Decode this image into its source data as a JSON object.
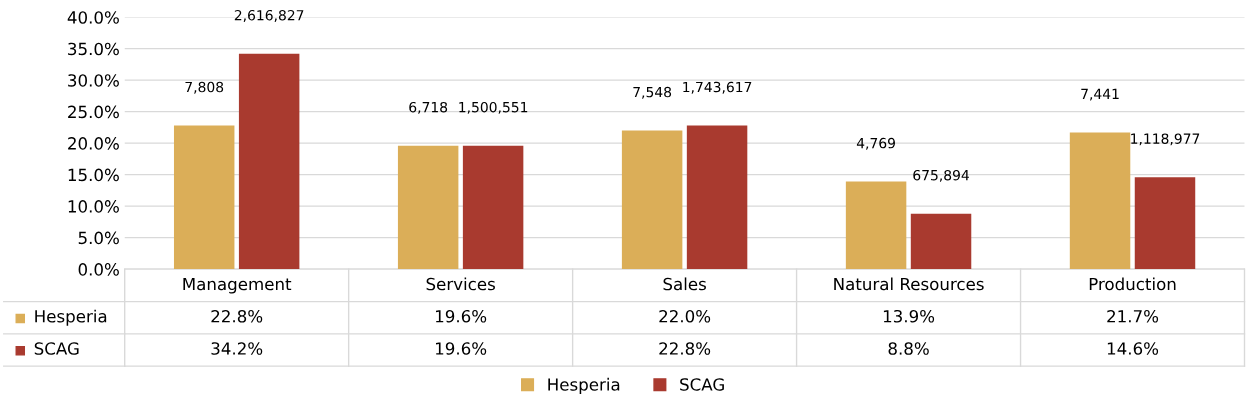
{
  "chart_data": {
    "type": "bar",
    "categories": [
      "Management",
      "Services",
      "Sales",
      "Natural Resources",
      "Production"
    ],
    "series": [
      {
        "name": "Hesperia",
        "color": "#dbae58",
        "values": [
          22.8,
          19.6,
          22.0,
          13.9,
          21.7
        ]
      },
      {
        "name": "SCAG",
        "color": "#a93a2f",
        "values": [
          34.2,
          19.6,
          22.8,
          8.8,
          14.6
        ]
      }
    ],
    "ylim": [
      0,
      40
    ],
    "yticks": [
      {
        "value": 0,
        "label": "0.0%"
      },
      {
        "value": 5,
        "label": "5.0%"
      },
      {
        "value": 10,
        "label": "10.0%"
      },
      {
        "value": 15,
        "label": "15.0%"
      },
      {
        "value": 20,
        "label": "20.0%"
      },
      {
        "value": 25,
        "label": "25.0%"
      },
      {
        "value": 30,
        "label": "30.0%"
      },
      {
        "value": 35,
        "label": "35.0%"
      },
      {
        "value": 40,
        "label": "40.0%"
      }
    ],
    "grid": "y",
    "legend": "bottom",
    "annotations": [
      {
        "text": "7,808",
        "x": "Management",
        "y": 22.8
      },
      {
        "text": "6,718",
        "x": "Services",
        "y": 19.6
      },
      {
        "text": "7,548",
        "x": "Sales",
        "y": 22.0
      },
      {
        "text": "4,769",
        "x": "Natural Resources",
        "y": 13.9
      },
      {
        "text": "7,441",
        "x": "Production",
        "y": 21.7
      },
      {
        "text": "2,616,827",
        "x": "Management",
        "y": 34.2
      },
      {
        "text": "1,500,551",
        "x": "Services",
        "y": 19.6
      },
      {
        "text": "1,743,617",
        "x": "Sales",
        "y": 22.8
      },
      {
        "text": "675,894",
        "x": "Natural Resources",
        "y": 8.8
      },
      {
        "text": "1,118,977",
        "x": "Production",
        "y": 14.6
      },
      "22.8%",
      "19.6%",
      "22.0%",
      "13.9%",
      "21.7%",
      "34.2%",
      "19.6%",
      "22.8%",
      "8.8%",
      "14.6%"
    ]
  }
}
